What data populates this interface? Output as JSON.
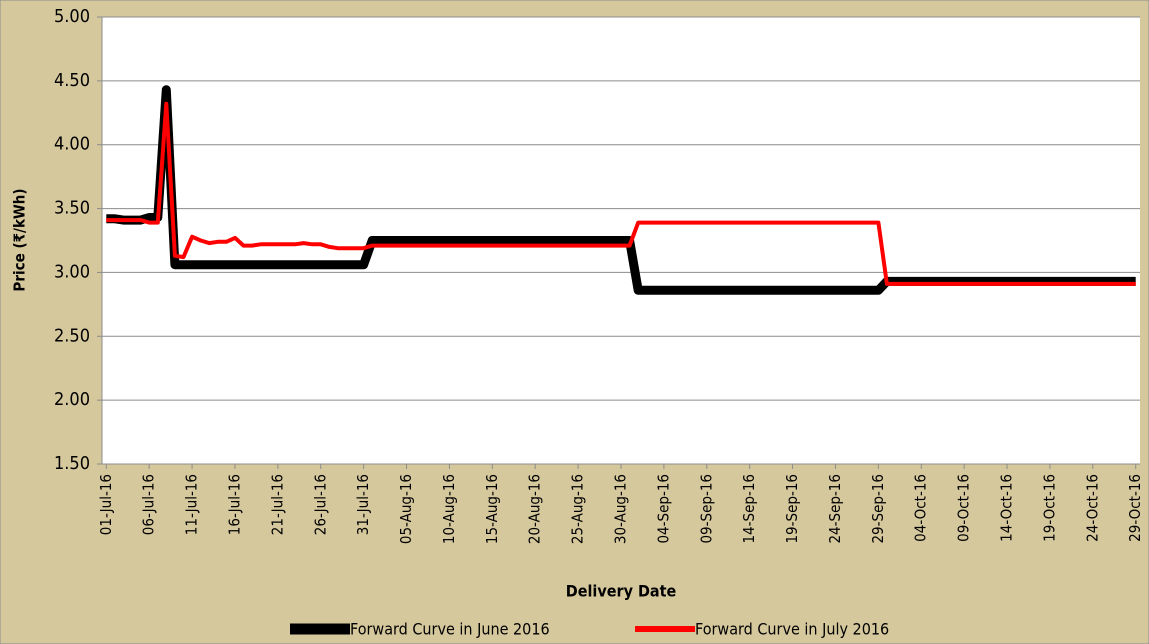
{
  "chart_data": {
    "type": "line",
    "xlabel": "Delivery Date",
    "ylabel": "Price (₹/kWh)",
    "categories": [
      "01-Jul-16",
      null,
      null,
      null,
      null,
      "06-Jul-16",
      null,
      null,
      null,
      null,
      "11-Jul-16",
      null,
      null,
      null,
      null,
      "16-Jul-16",
      null,
      null,
      null,
      null,
      "21-Jul-16",
      null,
      null,
      null,
      null,
      "26-Jul-16",
      null,
      null,
      null,
      null,
      "31-Jul-16",
      null,
      null,
      null,
      null,
      "05-Aug-16",
      null,
      null,
      null,
      null,
      "10-Aug-16",
      null,
      null,
      null,
      null,
      "15-Aug-16",
      null,
      null,
      null,
      null,
      "20-Aug-16",
      null,
      null,
      null,
      null,
      "25-Aug-16",
      null,
      null,
      null,
      null,
      "30-Aug-16",
      null,
      null,
      null,
      null,
      "04-Sep-16",
      null,
      null,
      null,
      null,
      "09-Sep-16",
      null,
      null,
      null,
      null,
      "14-Sep-16",
      null,
      null,
      null,
      null,
      "19-Sep-16",
      null,
      null,
      null,
      null,
      "24-Sep-16",
      null,
      null,
      null,
      null,
      "29-Sep-16",
      null,
      null,
      null,
      null,
      "04-Oct-16",
      null,
      null,
      null,
      null,
      "09-Oct-16",
      null,
      null,
      null,
      null,
      "14-Oct-16",
      null,
      null,
      null,
      null,
      "19-Oct-16",
      null,
      null,
      null,
      null,
      "24-Oct-16",
      null,
      null,
      null,
      null,
      "29-Oct-16"
    ],
    "series": [
      {
        "name": "Forward Curve in June 2016",
        "color": "#000000",
        "values": [
          3.42,
          3.42,
          3.41,
          3.41,
          3.41,
          3.43,
          3.43,
          4.43,
          3.06,
          3.06,
          3.06,
          3.06,
          3.06,
          3.06,
          3.06,
          3.06,
          3.06,
          3.06,
          3.06,
          3.06,
          3.06,
          3.06,
          3.06,
          3.06,
          3.06,
          3.06,
          3.06,
          3.06,
          3.06,
          3.06,
          3.06,
          3.25,
          3.25,
          3.25,
          3.25,
          3.25,
          3.25,
          3.25,
          3.25,
          3.25,
          3.25,
          3.25,
          3.25,
          3.25,
          3.25,
          3.25,
          3.25,
          3.25,
          3.25,
          3.25,
          3.25,
          3.25,
          3.25,
          3.25,
          3.25,
          3.25,
          3.25,
          3.25,
          3.25,
          3.25,
          3.25,
          3.25,
          2.86,
          2.86,
          2.86,
          2.86,
          2.86,
          2.86,
          2.86,
          2.86,
          2.86,
          2.86,
          2.86,
          2.86,
          2.86,
          2.86,
          2.86,
          2.86,
          2.86,
          2.86,
          2.86,
          2.86,
          2.86,
          2.86,
          2.86,
          2.86,
          2.86,
          2.86,
          2.86,
          2.86,
          2.86,
          2.93,
          2.93,
          2.93,
          2.93,
          2.93,
          2.93,
          2.93,
          2.93,
          2.93,
          2.93,
          2.93,
          2.93,
          2.93,
          2.93,
          2.93,
          2.93,
          2.93,
          2.93,
          2.93,
          2.93,
          2.93,
          2.93,
          2.93,
          2.93,
          2.93,
          2.93,
          2.93,
          2.93,
          2.93,
          2.93
        ]
      },
      {
        "name": "Forward Curve in July 2016",
        "color": "#ff0000",
        "values": [
          3.41,
          3.41,
          3.41,
          3.41,
          3.41,
          3.39,
          3.39,
          4.32,
          3.13,
          3.12,
          3.28,
          3.25,
          3.23,
          3.24,
          3.24,
          3.27,
          3.21,
          3.21,
          3.22,
          3.22,
          3.22,
          3.22,
          3.22,
          3.23,
          3.22,
          3.22,
          3.2,
          3.19,
          3.19,
          3.19,
          3.19,
          3.21,
          3.21,
          3.21,
          3.21,
          3.21,
          3.21,
          3.21,
          3.21,
          3.21,
          3.21,
          3.21,
          3.21,
          3.21,
          3.21,
          3.21,
          3.21,
          3.21,
          3.21,
          3.21,
          3.21,
          3.21,
          3.21,
          3.21,
          3.21,
          3.21,
          3.21,
          3.21,
          3.21,
          3.21,
          3.21,
          3.21,
          3.39,
          3.39,
          3.39,
          3.39,
          3.39,
          3.39,
          3.39,
          3.39,
          3.39,
          3.39,
          3.39,
          3.39,
          3.39,
          3.39,
          3.39,
          3.39,
          3.39,
          3.39,
          3.39,
          3.39,
          3.39,
          3.39,
          3.39,
          3.39,
          3.39,
          3.39,
          3.39,
          3.39,
          3.39,
          2.91,
          2.91,
          2.91,
          2.91,
          2.91,
          2.91,
          2.91,
          2.91,
          2.91,
          2.91,
          2.91,
          2.91,
          2.91,
          2.91,
          2.91,
          2.91,
          2.91,
          2.91,
          2.91,
          2.91,
          2.91,
          2.91,
          2.91,
          2.91,
          2.91,
          2.91,
          2.91,
          2.91,
          2.91,
          2.91
        ]
      }
    ],
    "ylim": [
      1.5,
      5
    ],
    "yticks": [
      {
        "value": 1.5,
        "label": "1.50"
      },
      {
        "value": 2,
        "label": "2.00"
      },
      {
        "value": 2.5,
        "label": "2.50"
      },
      {
        "value": 3,
        "label": "3.00"
      },
      {
        "value": 3.5,
        "label": "3.50"
      },
      {
        "value": 4,
        "label": "4.00"
      },
      {
        "value": 4.5,
        "label": "4.50"
      },
      {
        "value": 5,
        "label": "5.00"
      }
    ],
    "grid": true,
    "legend": "bottom"
  }
}
